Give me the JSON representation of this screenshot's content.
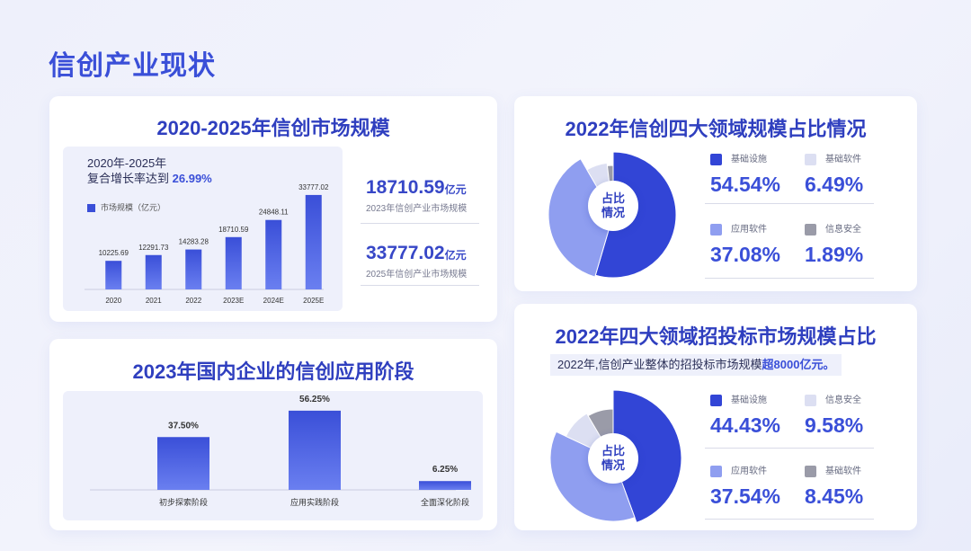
{
  "page": {
    "title": "信创产业现状"
  },
  "market": {
    "title": "2020-2025年信创市场规模",
    "cagr_line1": "2020年-2025年",
    "cagr_line2": "复合增长率达到",
    "cagr_value": "26.99%",
    "legend": "市场规模（亿元）",
    "stat1_value": "18710.59",
    "stat1_unit": "亿元",
    "stat1_label": "2023年信创产业市场规模",
    "stat2_value": "33777.02",
    "stat2_unit": "亿元",
    "stat2_label": "2025年信创产业市场规模"
  },
  "stages": {
    "title": "2023年国内企业的信创应用阶段"
  },
  "share1": {
    "title": "2022年信创四大领域规模占比情况",
    "center": [
      "占比",
      "情况"
    ],
    "items": [
      {
        "label": "基础设施",
        "value": "54.54%"
      },
      {
        "label": "基础软件",
        "value": "6.49%"
      },
      {
        "label": "应用软件",
        "value": "37.08%"
      },
      {
        "label": "信息安全",
        "value": "1.89%"
      }
    ]
  },
  "share2": {
    "title": "2022年四大领域招投标市场规模占比",
    "note_prefix": "2022年,信创产业整体的招投标市场规模",
    "note_highlight": "超8000亿元。",
    "center": [
      "占比",
      "情况"
    ],
    "items": [
      {
        "label": "基础设施",
        "value": "44.43%"
      },
      {
        "label": "信息安全",
        "value": "9.58%"
      },
      {
        "label": "应用软件",
        "value": "37.54%"
      },
      {
        "label": "基础软件",
        "value": "8.45%"
      }
    ]
  },
  "colors": {
    "primary": "#3a4fd8",
    "infra": "#3245d6",
    "app": "#8f9ef0",
    "light": "#dcdff2",
    "gray": "#9a9ba8"
  },
  "chart_data": [
    {
      "type": "bar",
      "categories": [
        "2020",
        "2021",
        "2022",
        "2023E",
        "2024E",
        "2025E"
      ],
      "values": [
        10225.69,
        12291.73,
        14283.28,
        18710.59,
        24848.11,
        33777.02
      ],
      "value_labels": [
        "10225.69",
        "12291.73",
        "14283.28",
        "18710.59",
        "24848.11",
        "33777.02"
      ],
      "series_name": "市场规模（亿元）",
      "ylim": [
        0,
        36000
      ]
    },
    {
      "type": "bar",
      "categories": [
        "初步探索阶段",
        "应用实践阶段",
        "全面深化阶段"
      ],
      "values": [
        37.5,
        56.25,
        6.25
      ],
      "value_labels": [
        "37.50%",
        "56.25%",
        "6.25%"
      ],
      "ylim": [
        0,
        60
      ]
    },
    {
      "type": "pie",
      "labels": [
        "基础设施",
        "应用软件",
        "基础软件",
        "信息安全"
      ],
      "values": [
        54.54,
        37.08,
        6.49,
        1.89
      ]
    },
    {
      "type": "pie",
      "labels": [
        "基础设施",
        "应用软件",
        "信息安全",
        "基础软件"
      ],
      "values": [
        44.43,
        37.54,
        9.58,
        8.45
      ]
    }
  ]
}
